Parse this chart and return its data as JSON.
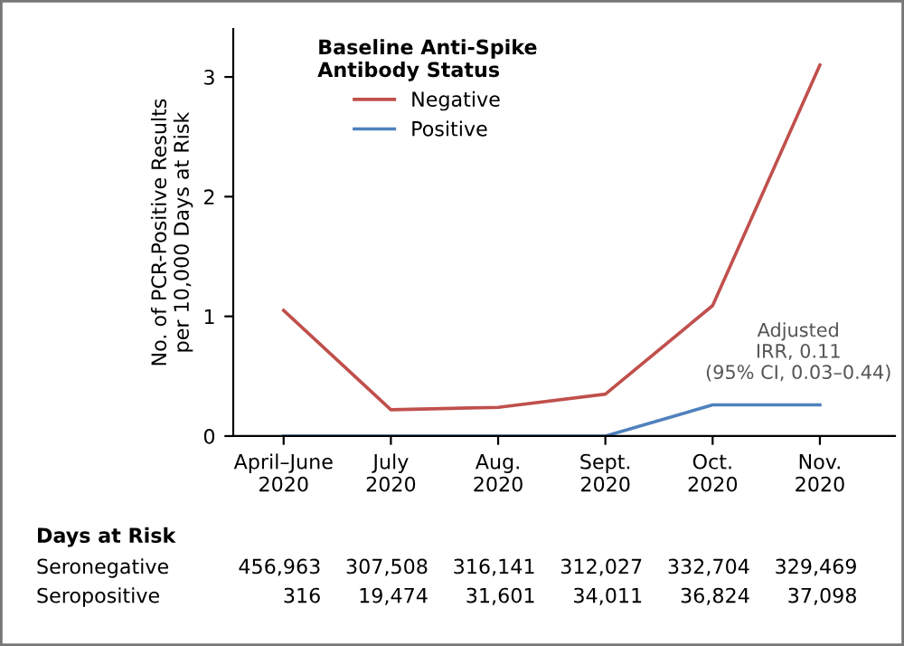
{
  "chart_data": {
    "type": "line",
    "ylabel": "No. of PCR-Positive Results\nper 10,000 Days at Risk",
    "legend_title": "Baseline Anti-Spike\nAntibody Status",
    "categories": [
      "April–June\n2020",
      "July\n2020",
      "Aug.\n2020",
      "Sept.\n2020",
      "Oct.\n2020",
      "Nov.\n2020"
    ],
    "series": [
      {
        "name": "Negative",
        "color": "#c0504d",
        "values": [
          1.05,
          0.22,
          0.24,
          0.35,
          1.09,
          3.1
        ]
      },
      {
        "name": "Positive",
        "color": "#4f81bd",
        "values": [
          0,
          0,
          0,
          0,
          0.26,
          0.26
        ]
      }
    ],
    "ylim": [
      0,
      3.4
    ],
    "yticks": [
      0,
      1,
      2,
      3
    ],
    "legend": "top left",
    "grid": false,
    "marker": "none",
    "line_style": "solid",
    "annotations": [
      "Adjusted\nIRR, 0.11\n(95% CI, 0.03–0.44)",
      "Days at Risk",
      "Seronegative",
      "456,963",
      "307,508",
      "316,141",
      "312,027",
      "332,704",
      "329,469",
      "Seropositive",
      "316",
      "19,474",
      "31,601",
      "34,011",
      "36,824",
      "37,098"
    ]
  }
}
